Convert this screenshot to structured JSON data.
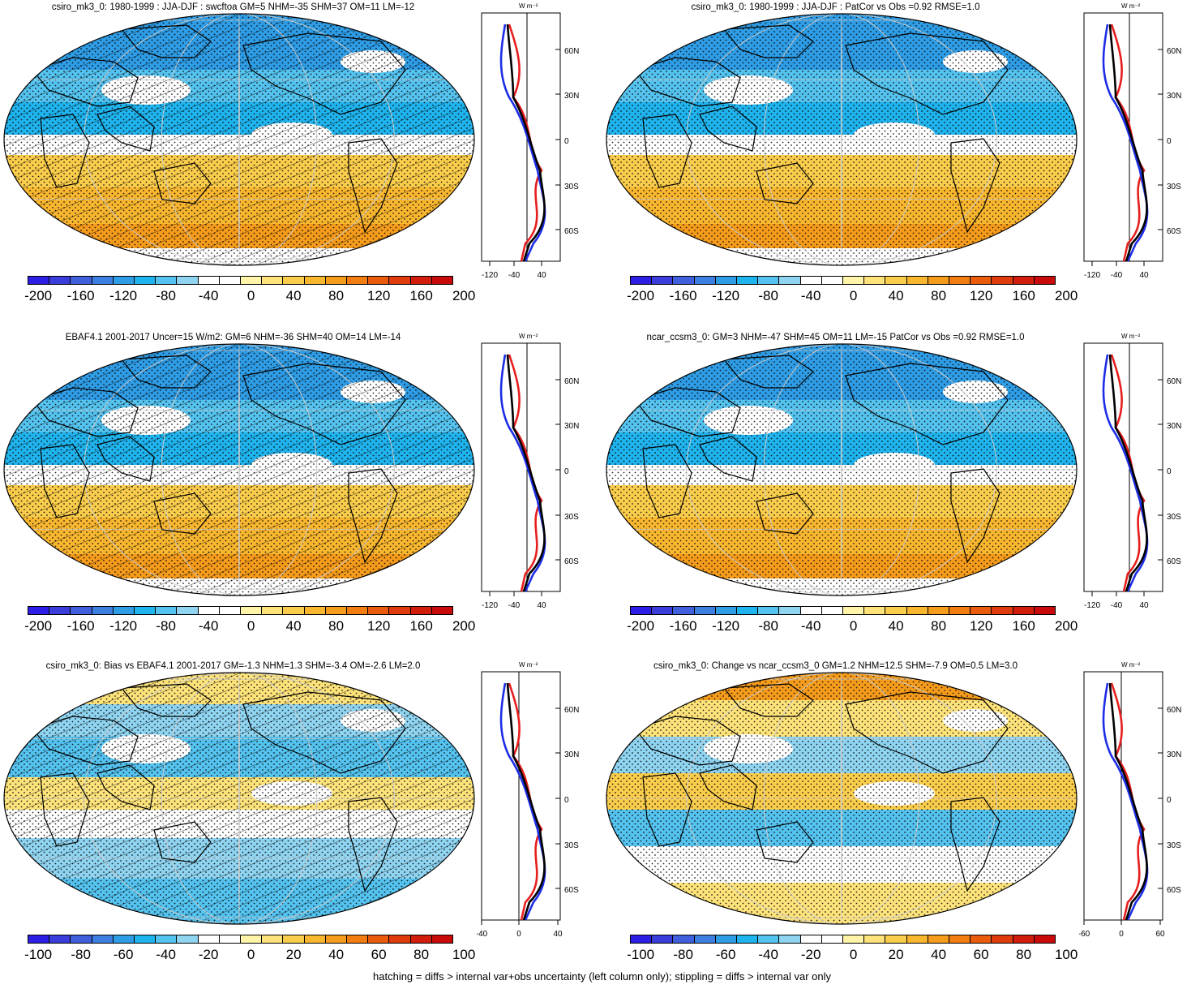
{
  "footnote": "hatching = diffs > internal var+obs uncertainty (left column only); stippling = diffs > internal var only",
  "zonal_unit": "W m⁻²",
  "lat_labels": [
    "60N",
    "30N",
    "0",
    "30S",
    "60S"
  ],
  "palette": [
    "#2d1ee6",
    "#3a3dd9",
    "#3f5fdc",
    "#3c7fe0",
    "#2f9de6",
    "#20b4ee",
    "#55c3ef",
    "#8fd4f1",
    "#ffffff",
    "#ffffff",
    "#fff4a8",
    "#fde37a",
    "#fbcd4c",
    "#f9b730",
    "#f69c1c",
    "#f27d10",
    "#eb5b0c",
    "#e03b0c",
    "#d21c0c",
    "#c80a0a"
  ],
  "panels": [
    {
      "title": "csiro_mk3_0: 1980-1999 : JJA-DJF : swcftoa GM=5 NHM=-35 SHM=37 OM=11 LM=-12",
      "colorbar_labels": [
        "-200",
        "-160",
        "-120",
        "-80",
        "-40",
        "0",
        "40",
        "80",
        "120",
        "160",
        "200"
      ],
      "zonal_xticks": [
        "-120",
        "-40",
        "40"
      ],
      "map_theme": "diff"
    },
    {
      "title": "csiro_mk3_0: 1980-1999 : JJA-DJF : PatCor vs Obs =0.92 RMSE=1.0",
      "colorbar_labels": [
        "-200",
        "-160",
        "-120",
        "-80",
        "-40",
        "0",
        "40",
        "80",
        "120",
        "160",
        "200"
      ],
      "zonal_xticks": [
        "-120",
        "-40",
        "40"
      ],
      "map_theme": "diff"
    },
    {
      "title": "EBAF4.1 2001-2017 Uncer=15 W/m2: GM=6 NHM=-36 SHM=40 OM=14 LM=-14",
      "colorbar_labels": [
        "-200",
        "-160",
        "-120",
        "-80",
        "-40",
        "0",
        "40",
        "80",
        "120",
        "160",
        "200"
      ],
      "zonal_xticks": [
        "-120",
        "-40",
        "40"
      ],
      "map_theme": "diff"
    },
    {
      "title": "ncar_ccsm3_0: GM=3 NHM=-47 SHM=45 OM=11 LM=-15 PatCor vs Obs =0.92 RMSE=1.0",
      "colorbar_labels": [
        "-200",
        "-160",
        "-120",
        "-80",
        "-40",
        "0",
        "40",
        "80",
        "120",
        "160",
        "200"
      ],
      "zonal_xticks": [
        "-120",
        "-40",
        "40"
      ],
      "map_theme": "diff"
    },
    {
      "title": "csiro_mk3_0: Bias vs EBAF4.1 2001-2017 GM=-1.3 NHM=1.3 SHM=-3.4 OM=-2.6 LM=2.0",
      "colorbar_labels": [
        "-100",
        "-80",
        "-60",
        "-40",
        "-20",
        "0",
        "20",
        "40",
        "60",
        "80",
        "100"
      ],
      "zonal_xticks": [
        "-40",
        "0",
        "40"
      ],
      "map_theme": "bias"
    },
    {
      "title": "csiro_mk3_0: Change vs ncar_ccsm3_0 GM=1.2 NHM=12.5 SHM=-7.9 OM=0.5 LM=3.0",
      "colorbar_labels": [
        "-100",
        "-80",
        "-60",
        "-40",
        "-20",
        "0",
        "20",
        "40",
        "60",
        "80",
        "100"
      ],
      "zonal_xticks": [
        "-60",
        "0",
        "60"
      ],
      "map_theme": "change"
    }
  ]
}
